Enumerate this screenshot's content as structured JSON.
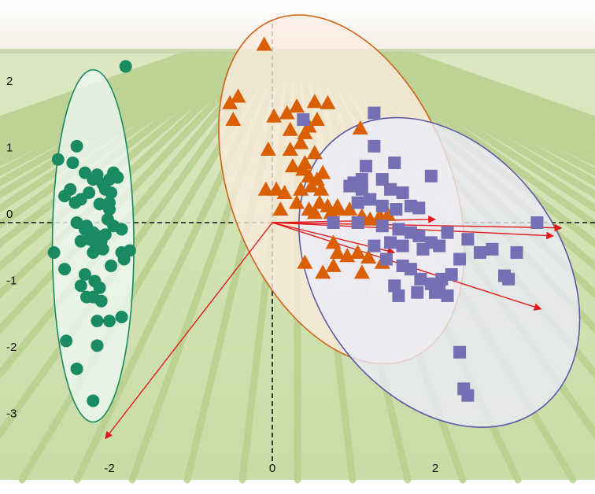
{
  "chart_data": {
    "type": "scatter",
    "subtype": "pca-biplot",
    "background": "photo of soybean field rows",
    "grid": false,
    "legend": "none",
    "xlim": [
      -3.3,
      3.9
    ],
    "ylim": [
      -3.9,
      2.7
    ],
    "x_ticks": [
      "-2",
      "0",
      "2"
    ],
    "x_tick_values": [
      -2,
      0,
      2
    ],
    "y_ticks": [
      "2",
      "1",
      "0",
      "-1",
      "-2",
      "-3"
    ],
    "y_tick_values": [
      2,
      1,
      0,
      -1,
      -2,
      -3
    ],
    "zero_lines": "dashed black",
    "series": [
      {
        "marker": "circle",
        "color": "#1a8a62",
        "ellipse": {
          "center": [
            -2.2,
            -0.35
          ],
          "half_width": 0.5,
          "half_height": 2.65,
          "angle": 0,
          "fill": "#eef8f4",
          "stroke": "#1a8a62"
        },
        "points": [
          [
            -1.8,
            2.35
          ],
          [
            -2.63,
            0.95
          ],
          [
            -2.4,
            1.15
          ],
          [
            -2.45,
            0.9
          ],
          [
            -2.3,
            0.75
          ],
          [
            -2.2,
            0.65
          ],
          [
            -2.15,
            0.72
          ],
          [
            -2.08,
            0.58
          ],
          [
            -2.0,
            0.65
          ],
          [
            -1.95,
            0.75
          ],
          [
            -1.9,
            0.68
          ],
          [
            -2.05,
            0.5
          ],
          [
            -2.25,
            0.45
          ],
          [
            -2.48,
            0.5
          ],
          [
            -2.55,
            0.4
          ],
          [
            -2.35,
            0.35
          ],
          [
            -2.12,
            0.28
          ],
          [
            -2.0,
            0.3
          ],
          [
            -2.4,
            0.0
          ],
          [
            -2.3,
            -0.1
          ],
          [
            -2.2,
            -0.15
          ],
          [
            -2.15,
            -0.2
          ],
          [
            -2.1,
            -0.22
          ],
          [
            -2.05,
            -0.18
          ],
          [
            -2.25,
            -0.25
          ],
          [
            -2.18,
            -0.3
          ],
          [
            -2.12,
            -0.35
          ],
          [
            -2.08,
            -0.4
          ],
          [
            -2.2,
            -0.45
          ],
          [
            -2.35,
            -0.28
          ],
          [
            -1.95,
            -0.05
          ],
          [
            -1.85,
            -0.45
          ],
          [
            -1.75,
            -0.42
          ],
          [
            -1.82,
            -0.55
          ],
          [
            -1.98,
            -0.65
          ],
          [
            -2.68,
            -0.45
          ],
          [
            -2.3,
            -0.78
          ],
          [
            -2.18,
            -0.88
          ],
          [
            -2.12,
            -0.98
          ],
          [
            -2.2,
            -1.12
          ],
          [
            -2.28,
            -1.12
          ],
          [
            -2.1,
            -1.18
          ],
          [
            -2.15,
            -1.48
          ],
          [
            -2.0,
            -1.48
          ],
          [
            -1.85,
            -1.42
          ],
          [
            -2.15,
            -1.85
          ],
          [
            -2.53,
            -1.78
          ],
          [
            -2.4,
            -2.2
          ],
          [
            -2.2,
            -2.68
          ],
          [
            -1.98,
            0.45
          ],
          [
            -2.02,
            0.05
          ],
          [
            -2.28,
            -0.05
          ],
          [
            -1.85,
            -0.1
          ],
          [
            -2.42,
            0.3
          ],
          [
            -2.0,
            0.2
          ],
          [
            -2.1,
            -0.28
          ],
          [
            -2.35,
            -0.95
          ],
          [
            -2.55,
            -0.7
          ]
        ]
      },
      {
        "marker": "triangle",
        "color": "#d95f02",
        "ellipse": {
          "center": [
            0.85,
            0.5
          ],
          "half_width": 1.35,
          "half_height": 2.75,
          "angle": -22,
          "fill": "#fcece0",
          "stroke": "#cf6417"
        },
        "points": [
          [
            -0.1,
            2.68
          ],
          [
            -0.52,
            1.8
          ],
          [
            -0.42,
            1.9
          ],
          [
            -0.48,
            1.55
          ],
          [
            0.02,
            1.6
          ],
          [
            0.18,
            1.65
          ],
          [
            0.3,
            1.75
          ],
          [
            0.52,
            1.82
          ],
          [
            0.68,
            1.8
          ],
          [
            0.55,
            1.55
          ],
          [
            0.22,
            1.4
          ],
          [
            0.45,
            1.45
          ],
          [
            0.4,
            1.35
          ],
          [
            0.35,
            1.2
          ],
          [
            -0.05,
            1.1
          ],
          [
            0.22,
            1.1
          ],
          [
            0.52,
            1.05
          ],
          [
            0.25,
            0.85
          ],
          [
            0.4,
            0.9
          ],
          [
            0.62,
            0.75
          ],
          [
            0.55,
            0.65
          ],
          [
            0.45,
            0.7
          ],
          [
            -0.08,
            0.5
          ],
          [
            0.15,
            0.45
          ],
          [
            0.35,
            0.5
          ],
          [
            0.48,
            0.55
          ],
          [
            0.6,
            0.5
          ],
          [
            0.3,
            0.3
          ],
          [
            0.45,
            0.2
          ],
          [
            0.52,
            0.15
          ],
          [
            0.68,
            0.25
          ],
          [
            0.72,
            0.15
          ],
          [
            0.82,
            0.2
          ],
          [
            0.95,
            0.2
          ],
          [
            1.1,
            0.1
          ],
          [
            1.2,
            0.05
          ],
          [
            1.32,
            0.1
          ],
          [
            1.42,
            0.12
          ],
          [
            0.1,
            0.2
          ],
          [
            0.05,
            0.5
          ],
          [
            1.08,
            1.42
          ],
          [
            0.8,
            0.25
          ],
          [
            0.4,
            -0.6
          ],
          [
            0.75,
            -0.3
          ],
          [
            0.8,
            -0.45
          ],
          [
            0.92,
            -0.5
          ],
          [
            0.75,
            -0.65
          ],
          [
            0.62,
            -0.75
          ],
          [
            1.05,
            -0.45
          ],
          [
            1.18,
            -0.52
          ],
          [
            1.1,
            -0.75
          ],
          [
            1.35,
            -0.6
          ],
          [
            0.58,
            0.3
          ],
          [
            0.38,
            0.8
          ]
        ]
      },
      {
        "marker": "square",
        "color": "#7570b3",
        "ellipse": {
          "center": [
            2.05,
            -0.75
          ],
          "half_width": 1.5,
          "half_height": 2.55,
          "angle": -36,
          "fill": "#eceaf8",
          "stroke": "#5e5aa6"
        },
        "points": [
          [
            0.38,
            1.55
          ],
          [
            1.25,
            1.65
          ],
          [
            1.25,
            1.15
          ],
          [
            1.5,
            0.9
          ],
          [
            1.15,
            0.85
          ],
          [
            1.1,
            0.65
          ],
          [
            1.35,
            0.65
          ],
          [
            1.0,
            0.6
          ],
          [
            0.95,
            0.55
          ],
          [
            1.1,
            0.5
          ],
          [
            1.45,
            0.5
          ],
          [
            1.6,
            0.45
          ],
          [
            1.7,
            0.25
          ],
          [
            1.8,
            0.22
          ],
          [
            1.2,
            0.35
          ],
          [
            1.05,
            0.3
          ],
          [
            1.35,
            0.25
          ],
          [
            1.52,
            0.2
          ],
          [
            1.95,
            0.7
          ],
          [
            3.25,
            0.0
          ],
          [
            0.75,
            0.0
          ],
          [
            1.05,
            0.0
          ],
          [
            1.35,
            -0.05
          ],
          [
            1.55,
            -0.1
          ],
          [
            1.7,
            -0.15
          ],
          [
            1.8,
            -0.2
          ],
          [
            1.95,
            -0.3
          ],
          [
            2.05,
            -0.35
          ],
          [
            1.45,
            -0.3
          ],
          [
            1.6,
            -0.35
          ],
          [
            1.85,
            -0.4
          ],
          [
            2.4,
            -0.25
          ],
          [
            2.7,
            -0.4
          ],
          [
            2.55,
            -0.45
          ],
          [
            3.0,
            -0.45
          ],
          [
            2.3,
            -0.55
          ],
          [
            1.4,
            -0.55
          ],
          [
            1.6,
            -0.65
          ],
          [
            1.7,
            -0.7
          ],
          [
            1.82,
            -0.85
          ],
          [
            1.95,
            -0.92
          ],
          [
            2.08,
            -0.85
          ],
          [
            2.2,
            -0.78
          ],
          [
            2.05,
            -1.0
          ],
          [
            1.5,
            -0.95
          ],
          [
            1.55,
            -1.1
          ],
          [
            1.78,
            -1.05
          ],
          [
            2.0,
            -1.05
          ],
          [
            2.15,
            -1.1
          ],
          [
            2.85,
            -0.8
          ],
          [
            2.9,
            -0.85
          ],
          [
            2.3,
            -1.95
          ],
          [
            2.35,
            -2.5
          ],
          [
            2.4,
            -2.6
          ],
          [
            1.25,
            -0.35
          ],
          [
            2.15,
            -0.15
          ]
        ]
      }
    ],
    "loadings": {
      "color": "#e31a1c",
      "vectors": [
        [
          3.55,
          -0.08
        ],
        [
          3.45,
          -0.2
        ],
        [
          3.3,
          -1.3
        ],
        [
          -2.05,
          -3.25
        ],
        [
          2.0,
          0.05
        ],
        [
          1.5,
          -0.45
        ]
      ]
    }
  }
}
